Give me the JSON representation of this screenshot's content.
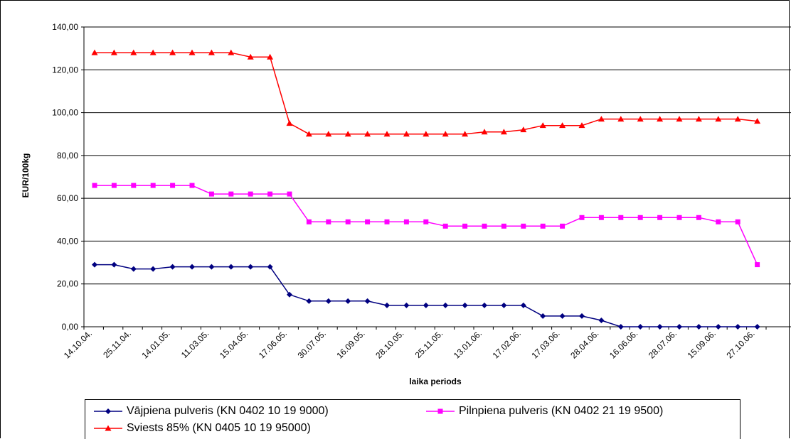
{
  "chart_data": {
    "type": "line",
    "xlabel": "laika periods",
    "ylabel": "EUR/100kg",
    "ylim": [
      0,
      140
    ],
    "yticks": [
      "0,00",
      "20,00",
      "40,00",
      "60,00",
      "80,00",
      "100,00",
      "120,00",
      "140,00"
    ],
    "x_tick_labels": [
      "14.10.04.",
      "25.11.04.",
      "14.01.05.",
      "11.03.05.",
      "15.04.05.",
      "17.06.05.",
      "30.07.05.",
      "16.09.05.",
      "28.10.05.",
      "25.11.05.",
      "13.01.06.",
      "17.02.06.",
      "17.03.06.",
      "28.04.06.",
      "16.06.06.",
      "28.07.06.",
      "15.09.06.",
      "27.10.06."
    ],
    "grid": "horizontal",
    "legend_position": "bottom",
    "series": [
      {
        "name": "Vājpiena pulveris (KN 0402 10 19 9000)",
        "color": "#000080",
        "marker": "diamond",
        "values": [
          29,
          29,
          27,
          27,
          28,
          28,
          28,
          28,
          28,
          28,
          15,
          12,
          12,
          12,
          12,
          10,
          10,
          10,
          10,
          10,
          10,
          10,
          10,
          5,
          5,
          5,
          3,
          0,
          0,
          0,
          0,
          0,
          0,
          0,
          0
        ]
      },
      {
        "name": "Pilnpiena pulveris (KN 0402 21 19 9500)",
        "color": "#FF00FF",
        "marker": "square",
        "values": [
          66,
          66,
          66,
          66,
          66,
          66,
          62,
          62,
          62,
          62,
          62,
          49,
          49,
          49,
          49,
          49,
          49,
          49,
          47,
          47,
          47,
          47,
          47,
          47,
          47,
          51,
          51,
          51,
          51,
          51,
          51,
          51,
          49,
          49,
          29
        ]
      },
      {
        "name": "Sviests 85% (KN 0405 10 19 95000)",
        "color": "#FF0000",
        "marker": "triangle",
        "values": [
          128,
          128,
          128,
          128,
          128,
          128,
          128,
          128,
          126,
          126,
          95,
          90,
          90,
          90,
          90,
          90,
          90,
          90,
          90,
          90,
          91,
          91,
          92,
          94,
          94,
          94,
          97,
          97,
          97,
          97,
          97,
          97,
          97,
          97,
          96
        ]
      }
    ]
  }
}
